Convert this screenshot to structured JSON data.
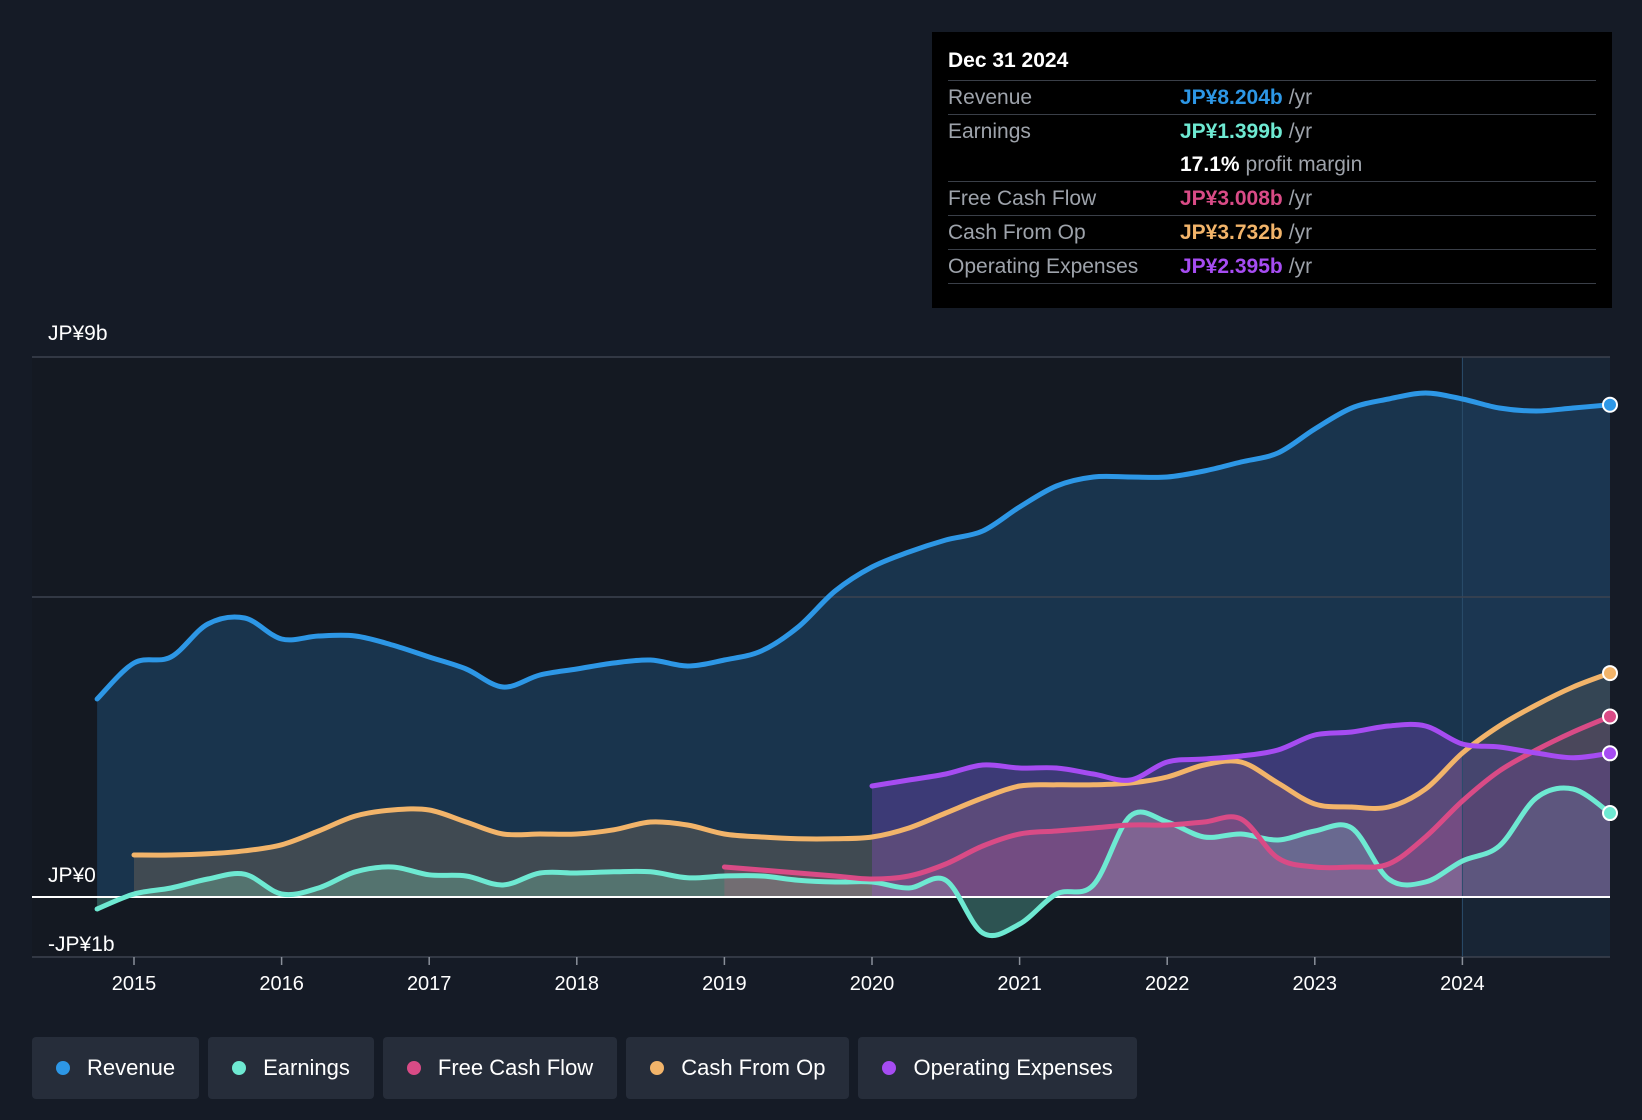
{
  "tooltip": {
    "date": "Dec 31 2024",
    "rows": [
      {
        "label": "Revenue",
        "value": "JP¥8.204b",
        "unit": "/yr",
        "color": "#2d97e6"
      },
      {
        "label": "Earnings",
        "value": "JP¥1.399b",
        "unit": "/yr",
        "color": "#6ee9d2"
      },
      {
        "label": "",
        "value": "17.1%",
        "unit": "profit margin",
        "color": "#ffffff"
      },
      {
        "label": "Free Cash Flow",
        "value": "JP¥3.008b",
        "unit": "/yr",
        "color": "#d94b86"
      },
      {
        "label": "Cash From Op",
        "value": "JP¥3.732b",
        "unit": "/yr",
        "color": "#f2b46a"
      },
      {
        "label": "Operating Expenses",
        "value": "JP¥2.395b",
        "unit": "/yr",
        "color": "#a64cf2"
      }
    ]
  },
  "legend": [
    {
      "label": "Revenue",
      "color": "#2d97e6"
    },
    {
      "label": "Earnings",
      "color": "#6ee9d2"
    },
    {
      "label": "Free Cash Flow",
      "color": "#d94b86"
    },
    {
      "label": "Cash From Op",
      "color": "#f2b46a"
    },
    {
      "label": "Operating Expenses",
      "color": "#a64cf2"
    }
  ],
  "chart_data": {
    "type": "area",
    "title": "",
    "xlabel": "",
    "ylabel": "",
    "ylim": [
      -1,
      9
    ],
    "xlim": [
      2014.7,
      2025.0
    ],
    "y_axis_labels": [
      "JP¥9b",
      "JP¥0",
      "-JP¥1b"
    ],
    "y_axis_values": [
      9,
      0,
      -1
    ],
    "x_ticks": [
      2015,
      2016,
      2017,
      2018,
      2019,
      2020,
      2021,
      2022,
      2023,
      2024
    ],
    "gridlines": [
      9,
      5,
      0
    ],
    "highlight_from": 2024.0,
    "series": [
      {
        "name": "Revenue",
        "color": "#2d97e6",
        "points": [
          [
            2014.75,
            3.3
          ],
          [
            2015.0,
            3.9
          ],
          [
            2015.25,
            4.0
          ],
          [
            2015.5,
            4.55
          ],
          [
            2015.75,
            4.65
          ],
          [
            2016.0,
            4.3
          ],
          [
            2016.25,
            4.35
          ],
          [
            2016.5,
            4.35
          ],
          [
            2016.75,
            4.2
          ],
          [
            2017.0,
            4.0
          ],
          [
            2017.25,
            3.8
          ],
          [
            2017.5,
            3.5
          ],
          [
            2017.75,
            3.7
          ],
          [
            2018.0,
            3.8
          ],
          [
            2018.25,
            3.9
          ],
          [
            2018.5,
            3.95
          ],
          [
            2018.75,
            3.85
          ],
          [
            2019.0,
            3.95
          ],
          [
            2019.25,
            4.1
          ],
          [
            2019.5,
            4.5
          ],
          [
            2019.75,
            5.1
          ],
          [
            2020.0,
            5.5
          ],
          [
            2020.25,
            5.75
          ],
          [
            2020.5,
            5.95
          ],
          [
            2020.75,
            6.1
          ],
          [
            2021.0,
            6.5
          ],
          [
            2021.25,
            6.85
          ],
          [
            2021.5,
            7.0
          ],
          [
            2021.75,
            7.0
          ],
          [
            2022.0,
            7.0
          ],
          [
            2022.25,
            7.1
          ],
          [
            2022.5,
            7.25
          ],
          [
            2022.75,
            7.4
          ],
          [
            2023.0,
            7.8
          ],
          [
            2023.25,
            8.15
          ],
          [
            2023.5,
            8.3
          ],
          [
            2023.75,
            8.4
          ],
          [
            2024.0,
            8.3
          ],
          [
            2024.25,
            8.15
          ],
          [
            2024.5,
            8.1
          ],
          [
            2024.75,
            8.15
          ],
          [
            2025.0,
            8.204
          ]
        ]
      },
      {
        "name": "Earnings",
        "color": "#6ee9d2",
        "points": [
          [
            2014.75,
            -0.2
          ],
          [
            2015.0,
            0.05
          ],
          [
            2015.25,
            0.15
          ],
          [
            2015.5,
            0.3
          ],
          [
            2015.75,
            0.38
          ],
          [
            2016.0,
            0.05
          ],
          [
            2016.25,
            0.15
          ],
          [
            2016.5,
            0.42
          ],
          [
            2016.75,
            0.5
          ],
          [
            2017.0,
            0.37
          ],
          [
            2017.25,
            0.35
          ],
          [
            2017.5,
            0.2
          ],
          [
            2017.75,
            0.4
          ],
          [
            2018.0,
            0.4
          ],
          [
            2018.25,
            0.42
          ],
          [
            2018.5,
            0.42
          ],
          [
            2018.75,
            0.32
          ],
          [
            2019.0,
            0.35
          ],
          [
            2019.25,
            0.35
          ],
          [
            2019.5,
            0.28
          ],
          [
            2019.75,
            0.25
          ],
          [
            2020.0,
            0.25
          ],
          [
            2020.25,
            0.15
          ],
          [
            2020.5,
            0.28
          ],
          [
            2020.75,
            -0.6
          ],
          [
            2021.0,
            -0.45
          ],
          [
            2021.25,
            0.05
          ],
          [
            2021.5,
            0.2
          ],
          [
            2021.75,
            1.35
          ],
          [
            2022.0,
            1.25
          ],
          [
            2022.25,
            1.0
          ],
          [
            2022.5,
            1.05
          ],
          [
            2022.75,
            0.95
          ],
          [
            2023.0,
            1.1
          ],
          [
            2023.25,
            1.15
          ],
          [
            2023.5,
            0.3
          ],
          [
            2023.75,
            0.25
          ],
          [
            2024.0,
            0.6
          ],
          [
            2024.25,
            0.85
          ],
          [
            2024.5,
            1.65
          ],
          [
            2024.75,
            1.8
          ],
          [
            2025.0,
            1.399
          ]
        ]
      },
      {
        "name": "Free Cash Flow",
        "color": "#d94b86",
        "points": [
          [
            2019.0,
            0.5
          ],
          [
            2019.25,
            0.45
          ],
          [
            2019.5,
            0.4
          ],
          [
            2019.75,
            0.35
          ],
          [
            2020.0,
            0.3
          ],
          [
            2020.25,
            0.35
          ],
          [
            2020.5,
            0.55
          ],
          [
            2020.75,
            0.85
          ],
          [
            2021.0,
            1.05
          ],
          [
            2021.25,
            1.1
          ],
          [
            2021.5,
            1.15
          ],
          [
            2021.75,
            1.2
          ],
          [
            2022.0,
            1.2
          ],
          [
            2022.25,
            1.25
          ],
          [
            2022.5,
            1.3
          ],
          [
            2022.75,
            0.65
          ],
          [
            2023.0,
            0.5
          ],
          [
            2023.25,
            0.5
          ],
          [
            2023.5,
            0.55
          ],
          [
            2023.75,
            1.0
          ],
          [
            2024.0,
            1.6
          ],
          [
            2024.25,
            2.1
          ],
          [
            2024.5,
            2.45
          ],
          [
            2024.75,
            2.75
          ],
          [
            2025.0,
            3.008
          ]
        ]
      },
      {
        "name": "Cash From Op",
        "color": "#f2b46a",
        "points": [
          [
            2015.0,
            0.7
          ],
          [
            2015.25,
            0.7
          ],
          [
            2015.5,
            0.72
          ],
          [
            2015.75,
            0.77
          ],
          [
            2016.0,
            0.87
          ],
          [
            2016.25,
            1.1
          ],
          [
            2016.5,
            1.35
          ],
          [
            2016.75,
            1.45
          ],
          [
            2017.0,
            1.45
          ],
          [
            2017.25,
            1.25
          ],
          [
            2017.5,
            1.05
          ],
          [
            2017.75,
            1.05
          ],
          [
            2018.0,
            1.05
          ],
          [
            2018.25,
            1.12
          ],
          [
            2018.5,
            1.25
          ],
          [
            2018.75,
            1.2
          ],
          [
            2019.0,
            1.05
          ],
          [
            2019.25,
            1.0
          ],
          [
            2019.5,
            0.97
          ],
          [
            2019.75,
            0.97
          ],
          [
            2020.0,
            1.0
          ],
          [
            2020.25,
            1.15
          ],
          [
            2020.5,
            1.4
          ],
          [
            2020.75,
            1.65
          ],
          [
            2021.0,
            1.85
          ],
          [
            2021.25,
            1.87
          ],
          [
            2021.5,
            1.87
          ],
          [
            2021.75,
            1.9
          ],
          [
            2022.0,
            2.0
          ],
          [
            2022.25,
            2.2
          ],
          [
            2022.5,
            2.25
          ],
          [
            2022.75,
            1.9
          ],
          [
            2023.0,
            1.55
          ],
          [
            2023.25,
            1.5
          ],
          [
            2023.5,
            1.5
          ],
          [
            2023.75,
            1.8
          ],
          [
            2024.0,
            2.4
          ],
          [
            2024.25,
            2.85
          ],
          [
            2024.5,
            3.2
          ],
          [
            2024.75,
            3.5
          ],
          [
            2025.0,
            3.732
          ]
        ]
      },
      {
        "name": "Operating Expenses",
        "color": "#a64cf2",
        "points": [
          [
            2020.0,
            1.85
          ],
          [
            2020.25,
            1.95
          ],
          [
            2020.5,
            2.05
          ],
          [
            2020.75,
            2.2
          ],
          [
            2021.0,
            2.15
          ],
          [
            2021.25,
            2.15
          ],
          [
            2021.5,
            2.05
          ],
          [
            2021.75,
            1.95
          ],
          [
            2022.0,
            2.25
          ],
          [
            2022.25,
            2.3
          ],
          [
            2022.5,
            2.35
          ],
          [
            2022.75,
            2.45
          ],
          [
            2023.0,
            2.7
          ],
          [
            2023.25,
            2.75
          ],
          [
            2023.5,
            2.85
          ],
          [
            2023.75,
            2.85
          ],
          [
            2024.0,
            2.55
          ],
          [
            2024.25,
            2.5
          ],
          [
            2024.5,
            2.4
          ],
          [
            2024.75,
            2.32
          ],
          [
            2025.0,
            2.395
          ]
        ]
      }
    ]
  }
}
